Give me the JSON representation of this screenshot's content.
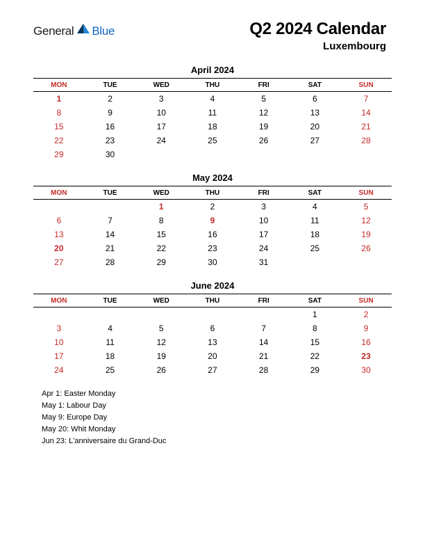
{
  "logo": {
    "text1": "General",
    "text2": "Blue",
    "color_general": "#1a1a1a",
    "color_blue": "#1565c0",
    "mark_dark": "#0a3558",
    "mark_light": "#2986d6"
  },
  "title": "Q2 2024 Calendar",
  "subtitle": "Luxembourg",
  "day_headers": [
    "MON",
    "TUE",
    "WED",
    "THU",
    "FRI",
    "SAT",
    "SUN"
  ],
  "header_red_cols": [
    0,
    6
  ],
  "colors": {
    "text": "#000000",
    "accent_red": "#c62828",
    "border": "#000000",
    "background": "#ffffff"
  },
  "typography": {
    "title_size": 24,
    "subtitle_size": 15,
    "month_title_size": 13,
    "header_size": 10,
    "cell_size": 12,
    "holiday_size": 11,
    "family": "Arial"
  },
  "months": [
    {
      "title": "April 2024",
      "weeks": [
        [
          {
            "d": 1,
            "h": true
          },
          {
            "d": 2
          },
          {
            "d": 3
          },
          {
            "d": 4
          },
          {
            "d": 5
          },
          {
            "d": 6
          },
          {
            "d": 7,
            "r": true
          }
        ],
        [
          {
            "d": 8,
            "r": true
          },
          {
            "d": 9
          },
          {
            "d": 10
          },
          {
            "d": 11
          },
          {
            "d": 12
          },
          {
            "d": 13
          },
          {
            "d": 14,
            "r": true
          }
        ],
        [
          {
            "d": 15,
            "r": true
          },
          {
            "d": 16
          },
          {
            "d": 17
          },
          {
            "d": 18
          },
          {
            "d": 19
          },
          {
            "d": 20
          },
          {
            "d": 21,
            "r": true
          }
        ],
        [
          {
            "d": 22,
            "r": true
          },
          {
            "d": 23
          },
          {
            "d": 24
          },
          {
            "d": 25
          },
          {
            "d": 26
          },
          {
            "d": 27
          },
          {
            "d": 28,
            "r": true
          }
        ],
        [
          {
            "d": 29,
            "r": true
          },
          {
            "d": 30
          },
          null,
          null,
          null,
          null,
          null
        ]
      ]
    },
    {
      "title": "May 2024",
      "weeks": [
        [
          null,
          null,
          {
            "d": 1,
            "h": true
          },
          {
            "d": 2
          },
          {
            "d": 3
          },
          {
            "d": 4
          },
          {
            "d": 5,
            "r": true
          }
        ],
        [
          {
            "d": 6,
            "r": true
          },
          {
            "d": 7
          },
          {
            "d": 8
          },
          {
            "d": 9,
            "h": true
          },
          {
            "d": 10
          },
          {
            "d": 11
          },
          {
            "d": 12,
            "r": true
          }
        ],
        [
          {
            "d": 13,
            "r": true
          },
          {
            "d": 14
          },
          {
            "d": 15
          },
          {
            "d": 16
          },
          {
            "d": 17
          },
          {
            "d": 18
          },
          {
            "d": 19,
            "r": true
          }
        ],
        [
          {
            "d": 20,
            "h": true
          },
          {
            "d": 21
          },
          {
            "d": 22
          },
          {
            "d": 23
          },
          {
            "d": 24
          },
          {
            "d": 25
          },
          {
            "d": 26,
            "r": true
          }
        ],
        [
          {
            "d": 27,
            "r": true
          },
          {
            "d": 28
          },
          {
            "d": 29
          },
          {
            "d": 30
          },
          {
            "d": 31
          },
          null,
          null
        ]
      ]
    },
    {
      "title": "June 2024",
      "weeks": [
        [
          null,
          null,
          null,
          null,
          null,
          {
            "d": 1
          },
          {
            "d": 2,
            "r": true
          }
        ],
        [
          {
            "d": 3,
            "r": true
          },
          {
            "d": 4
          },
          {
            "d": 5
          },
          {
            "d": 6
          },
          {
            "d": 7
          },
          {
            "d": 8
          },
          {
            "d": 9,
            "r": true
          }
        ],
        [
          {
            "d": 10,
            "r": true
          },
          {
            "d": 11
          },
          {
            "d": 12
          },
          {
            "d": 13
          },
          {
            "d": 14
          },
          {
            "d": 15
          },
          {
            "d": 16,
            "r": true
          }
        ],
        [
          {
            "d": 17,
            "r": true
          },
          {
            "d": 18
          },
          {
            "d": 19
          },
          {
            "d": 20
          },
          {
            "d": 21
          },
          {
            "d": 22
          },
          {
            "d": 23,
            "h": true
          }
        ],
        [
          {
            "d": 24,
            "r": true
          },
          {
            "d": 25
          },
          {
            "d": 26
          },
          {
            "d": 27
          },
          {
            "d": 28
          },
          {
            "d": 29
          },
          {
            "d": 30,
            "r": true
          }
        ]
      ]
    }
  ],
  "holidays": [
    "Apr 1: Easter Monday",
    "May 1: Labour Day",
    "May 9: Europe Day",
    "May 20: Whit Monday",
    "Jun 23: L'anniversaire du Grand-Duc"
  ]
}
